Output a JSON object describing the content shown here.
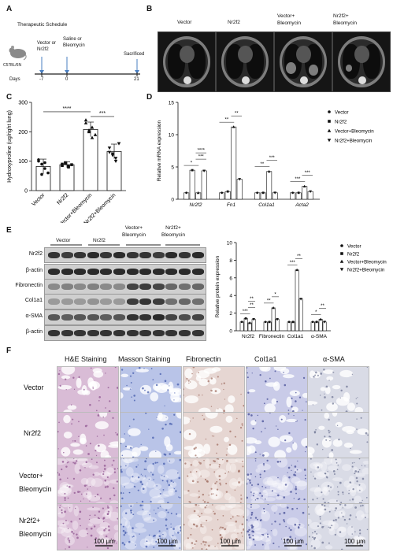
{
  "panel_letters": {
    "a": "A",
    "b": "B",
    "c": "C",
    "d": "D",
    "e": "E",
    "f": "F"
  },
  "panel_a": {
    "title": "Therapeutic Schedule",
    "mouse_label": "C57BL/6N",
    "step1": [
      "Vector or",
      "Nr2f2"
    ],
    "step2": [
      "Saline or",
      "Bleomycin"
    ],
    "step3": "Sacrificed",
    "days_label": "Days",
    "days": [
      "-7",
      "0",
      "21"
    ]
  },
  "panel_b": {
    "labels": [
      [
        "Vector",
        ""
      ],
      [
        "Nr2f2",
        ""
      ],
      [
        "Vector+",
        "Bleomycin"
      ],
      [
        "Nr2f2+",
        "Bleomycin"
      ]
    ]
  },
  "chart_data": [
    {
      "id": "C",
      "type": "bar",
      "ylabel": "Hydroxyproline (ug/right lung)",
      "ylim": [
        0,
        300
      ],
      "yticks": [
        "0",
        "100",
        "200",
        "300"
      ],
      "categories": [
        "Vector",
        "Nr2f2",
        "Vector+Bleomycin",
        "Nr2f2+Bleomycin"
      ],
      "values": [
        82,
        88,
        208,
        133
      ],
      "errors": [
        25,
        10,
        25,
        25
      ],
      "points": [
        [
          100,
          90,
          75,
          60,
          105,
          55,
          95
        ],
        [
          85,
          95,
          80,
          88,
          90,
          92,
          83
        ],
        [
          230,
          205,
          215,
          190,
          240,
          200,
          180
        ],
        [
          145,
          125,
          100,
          160,
          130,
          120,
          110
        ]
      ],
      "significance": [
        {
          "label": "****",
          "from": 0,
          "to": 2
        },
        {
          "label": "***",
          "from": 2,
          "to": 3
        }
      ]
    },
    {
      "id": "D",
      "type": "bar",
      "ylabel": "Relative mRNA expression",
      "ylim": [
        0,
        15
      ],
      "yticks": [
        "0",
        "5",
        "10",
        "15"
      ],
      "categories": [
        "Nr2f2",
        "Fn1",
        "Col1a1",
        "Acta2"
      ],
      "series": [
        {
          "name": "Vector",
          "values": [
            1.0,
            1.0,
            1.0,
            1.0
          ]
        },
        {
          "name": "Nr2f2",
          "values": [
            4.5,
            1.2,
            1.0,
            1.0
          ]
        },
        {
          "name": "Vector+Bleomycin",
          "values": [
            1.0,
            11.2,
            4.3,
            2.0
          ]
        },
        {
          "name": "Nr2f2+Bleomycin",
          "values": [
            4.4,
            3.1,
            1.0,
            1.2
          ]
        }
      ],
      "significance": [
        "*",
        "***",
        "****",
        "**",
        "**",
        "**",
        "***",
        "***",
        "***"
      ]
    },
    {
      "id": "E-quant",
      "type": "bar",
      "ylabel": "Relative protein expression",
      "ylim": [
        0,
        10
      ],
      "yticks": [
        "0",
        "2",
        "4",
        "6",
        "8",
        "10"
      ],
      "categories": [
        "Nr2f2",
        "Fibronectin",
        "Col1a1",
        "α-SMA"
      ],
      "series": [
        {
          "name": "Vector",
          "values": [
            1.0,
            1.0,
            1.0,
            1.0
          ]
        },
        {
          "name": "Nr2f2",
          "values": [
            1.4,
            1.0,
            1.0,
            1.0
          ]
        },
        {
          "name": "Vector+Bleomycin",
          "values": [
            0.9,
            2.6,
            6.9,
            1.3
          ]
        },
        {
          "name": "Nr2f2+Bleomycin",
          "values": [
            1.3,
            1.3,
            3.6,
            1.0
          ]
        }
      ],
      "significance": [
        "***",
        "**",
        "**",
        "**",
        "*",
        "***",
        "**",
        "*",
        "**"
      ]
    }
  ],
  "panel_e": {
    "groups": [
      "Vector",
      "Nr2f2",
      [
        "Vector+",
        "Bleomycin"
      ],
      [
        "Nr2f2+",
        "Bleomycin"
      ]
    ],
    "rows": [
      "Nr2f2",
      "β-actin",
      "Fibronectin",
      "Col1a1",
      "α-SMA",
      "β-actin"
    ]
  },
  "legend": [
    "Vector",
    "Nr2f2",
    "Vector+Bleomycin",
    "Nr2f2+Bleomycin"
  ],
  "panel_f": {
    "columns": [
      "H&E Staining",
      "Masson Staining",
      "Fibronectin",
      "Col1a1",
      "α-SMA"
    ],
    "rows": [
      [
        "Vector",
        ""
      ],
      [
        "Nr2f2",
        ""
      ],
      [
        "Vector+",
        "Bleomycin"
      ],
      [
        "Nr2f2+",
        "Bleomycin"
      ]
    ],
    "scale_label": "100 μm"
  },
  "colors": {
    "he": "#d9bcd6",
    "masson": "#b9c4e8",
    "fn": "#e6d6d2",
    "col": "#c9cbe8",
    "sma": "#d9dbe6"
  }
}
